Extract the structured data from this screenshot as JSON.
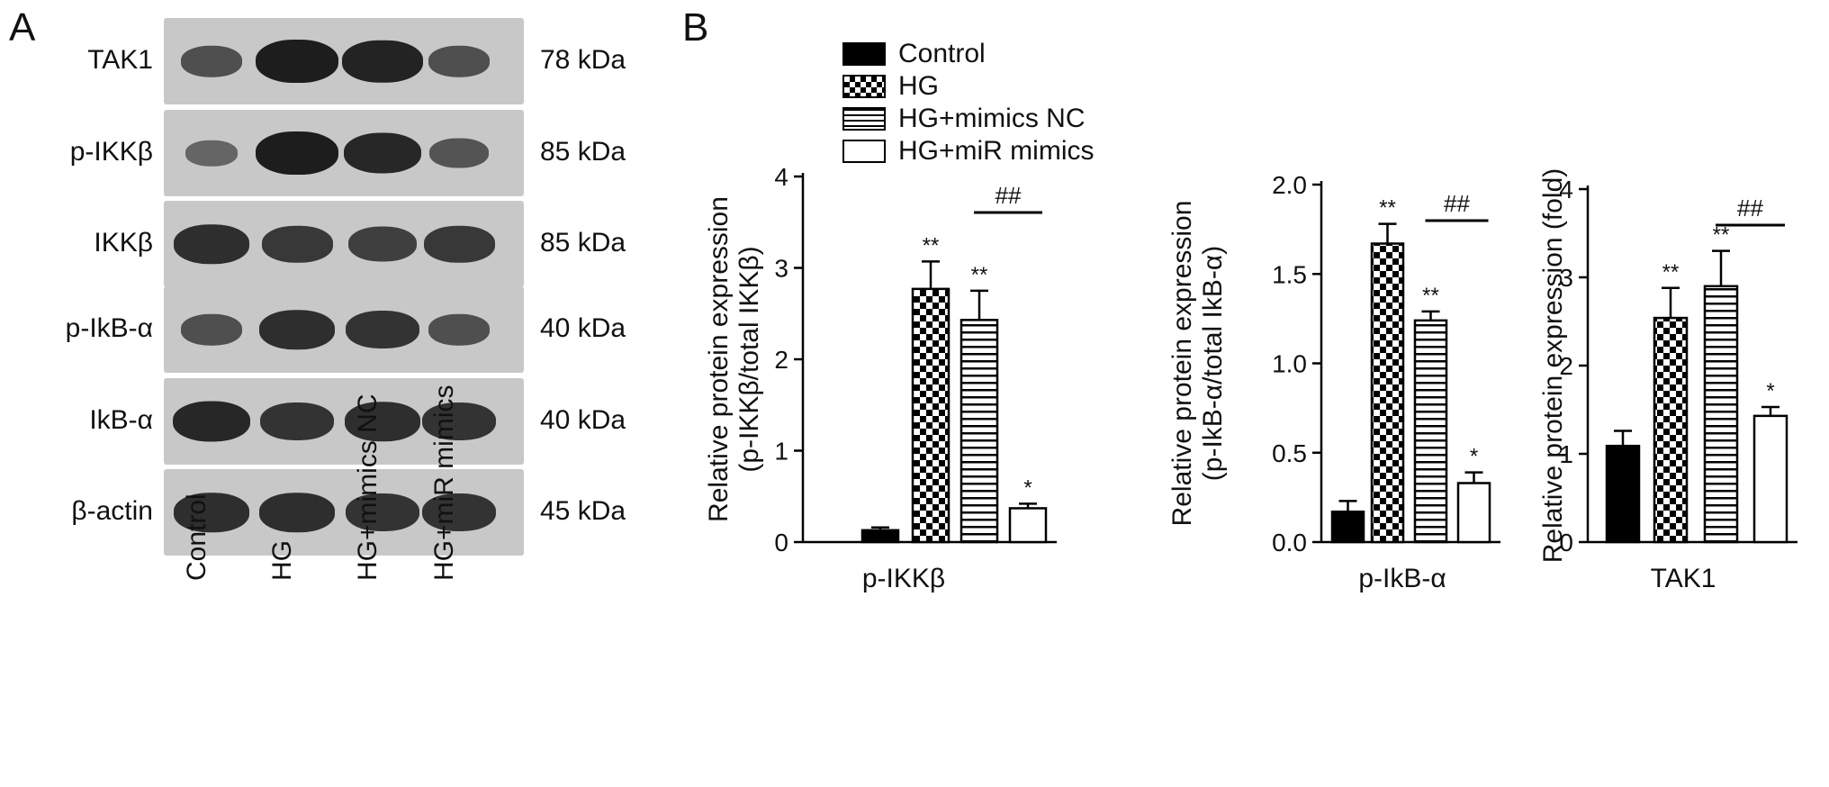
{
  "panels": {
    "a_label": "A",
    "b_label": "B"
  },
  "blot": {
    "lanes": [
      "Control",
      "HG",
      "HG+mimics NC",
      "HG+miR mimics"
    ],
    "rows": [
      {
        "protein": "TAK1",
        "kda": "78 kDa",
        "intensity": [
          0.55,
          1.0,
          0.95,
          0.55
        ]
      },
      {
        "protein": "p-IKKβ",
        "kda": "85 kDa",
        "intensity": [
          0.35,
          1.0,
          0.9,
          0.5
        ]
      },
      {
        "protein": "IKKβ",
        "kda": "85 kDa",
        "intensity": [
          0.85,
          0.75,
          0.7,
          0.75
        ]
      },
      {
        "protein": "p-IkB-α",
        "kda": "40 kDa",
        "intensity": [
          0.55,
          0.85,
          0.8,
          0.55
        ]
      },
      {
        "protein": "IkB-α",
        "kda": "40 kDa",
        "intensity": [
          0.9,
          0.8,
          0.85,
          0.8
        ]
      },
      {
        "protein": "β-actin",
        "kda": "45 kDa",
        "intensity": [
          0.85,
          0.85,
          0.8,
          0.8
        ]
      }
    ]
  },
  "legend": {
    "items": [
      {
        "label": "Control",
        "pattern": "solid"
      },
      {
        "label": "HG",
        "pattern": "checker"
      },
      {
        "label": "HG+mimics NC",
        "pattern": "hstripes"
      },
      {
        "label": "HG+miR mimics",
        "pattern": "open"
      }
    ]
  },
  "chart_data": [
    {
      "type": "bar",
      "category": "p-IKKβ",
      "ylabel": "Relative protein expression\n(p-IKKβ/total IKKβ)",
      "ylim": [
        0,
        4
      ],
      "yticks": [
        "0",
        "1",
        "2",
        "3",
        "4"
      ],
      "series": [
        {
          "name": "Control",
          "value": 0.13,
          "error": 0.03,
          "mark": ""
        },
        {
          "name": "HG",
          "value": 2.77,
          "error": 0.3,
          "mark": "**"
        },
        {
          "name": "HG+mimics NC",
          "value": 2.43,
          "error": 0.32,
          "mark": "**"
        },
        {
          "name": "HG+miR mimics",
          "value": 0.37,
          "error": 0.05,
          "mark": "*"
        }
      ],
      "comparison": {
        "from": 2,
        "to": 3,
        "label": "##"
      }
    },
    {
      "type": "bar",
      "category": "p-IkB-α",
      "ylabel": "Relative protein expression\n(p-IkB-α/total IkB-α)",
      "ylim": [
        0,
        2
      ],
      "yticks": [
        "0.0",
        "0.5",
        "1.0",
        "1.5",
        "2.0"
      ],
      "series": [
        {
          "name": "Control",
          "value": 0.17,
          "error": 0.06,
          "mark": ""
        },
        {
          "name": "HG",
          "value": 1.67,
          "error": 0.11,
          "mark": "**"
        },
        {
          "name": "HG+mimics NC",
          "value": 1.24,
          "error": 0.05,
          "mark": "**"
        },
        {
          "name": "HG+miR mimics",
          "value": 0.33,
          "error": 0.06,
          "mark": "*"
        }
      ],
      "comparison": {
        "from": 2,
        "to": 3,
        "label": "##"
      }
    },
    {
      "type": "bar",
      "category": "TAK1",
      "ylabel": "Relative protein expression (fold)",
      "ylim": [
        0,
        4
      ],
      "yticks": [
        "0",
        "1",
        "2",
        "3",
        "4"
      ],
      "series": [
        {
          "name": "Control",
          "value": 1.09,
          "error": 0.17,
          "mark": ""
        },
        {
          "name": "HG",
          "value": 2.54,
          "error": 0.34,
          "mark": "**"
        },
        {
          "name": "HG+mimics NC",
          "value": 2.9,
          "error": 0.4,
          "mark": "**"
        },
        {
          "name": "HG+miR mimics",
          "value": 1.43,
          "error": 0.1,
          "mark": "*"
        }
      ],
      "comparison": {
        "from": 2,
        "to": 3,
        "label": "##"
      }
    }
  ]
}
